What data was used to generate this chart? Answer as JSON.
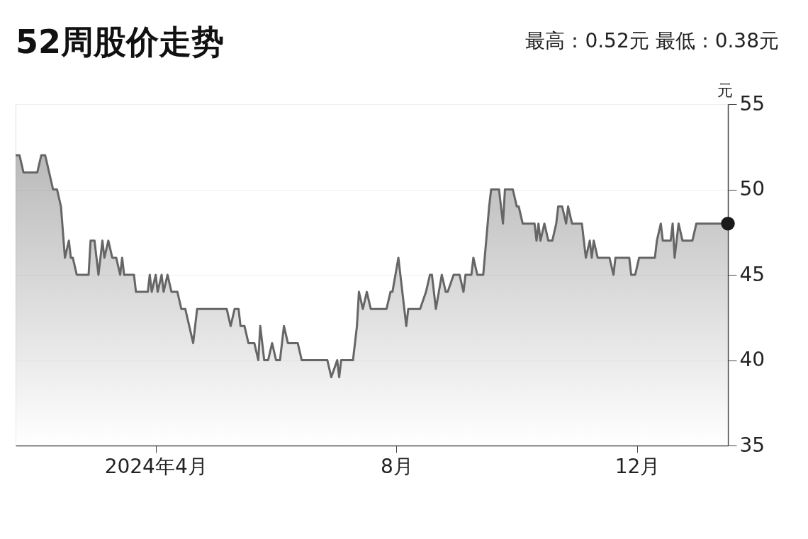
{
  "chart_data": {
    "type": "area",
    "title": "52周股价走势",
    "subtitle": "最高：0.52元    最低：0.38元",
    "ylabel": "元",
    "series": [
      {
        "color": "#666666",
        "x": [
          "2024-01-21",
          "2024-01-23",
          "2024-01-25",
          "2024-02-01",
          "2024-02-03",
          "2024-02-05",
          "2024-02-07",
          "2024-02-09",
          "2024-02-11",
          "2024-02-13",
          "2024-02-15",
          "2024-02-17",
          "2024-02-18",
          "2024-02-19",
          "2024-02-21",
          "2024-02-27",
          "2024-02-28",
          "2024-03-01",
          "2024-03-03",
          "2024-03-05",
          "2024-03-06",
          "2024-03-08",
          "2024-03-10",
          "2024-03-12",
          "2024-03-14",
          "2024-03-15",
          "2024-03-16",
          "2024-03-21",
          "2024-03-22",
          "2024-03-28",
          "2024-03-29",
          "2024-03-30",
          "2024-04-01",
          "2024-04-02",
          "2024-04-04",
          "2024-04-05",
          "2024-04-07",
          "2024-04-09",
          "2024-04-12",
          "2024-04-14",
          "2024-04-16",
          "2024-04-20",
          "2024-04-22",
          "2024-05-07",
          "2024-05-09",
          "2024-05-11",
          "2024-05-13",
          "2024-05-14",
          "2024-05-16",
          "2024-05-18",
          "2024-05-21",
          "2024-05-23",
          "2024-05-24",
          "2024-05-26",
          "2024-05-28",
          "2024-05-30",
          "2024-06-01",
          "2024-06-03",
          "2024-06-05",
          "2024-06-07",
          "2024-06-12",
          "2024-06-14",
          "2024-06-27",
          "2024-06-29",
          "2024-07-02",
          "2024-07-03",
          "2024-07-04",
          "2024-07-10",
          "2024-07-12",
          "2024-07-13",
          "2024-07-15",
          "2024-07-17",
          "2024-07-19",
          "2024-07-27",
          "2024-07-29",
          "2024-07-30",
          "2024-08-02",
          "2024-08-05",
          "2024-08-06",
          "2024-08-07",
          "2024-08-13",
          "2024-08-16",
          "2024-08-18",
          "2024-08-19",
          "2024-08-21",
          "2024-08-24",
          "2024-08-26",
          "2024-08-27",
          "2024-08-30",
          "2024-09-02",
          "2024-09-04",
          "2024-09-05",
          "2024-09-08",
          "2024-09-09",
          "2024-09-11",
          "2024-09-14",
          "2024-09-17",
          "2024-09-18",
          "2024-09-22",
          "2024-09-24",
          "2024-09-25",
          "2024-09-29",
          "2024-10-01",
          "2024-10-02",
          "2024-10-04",
          "2024-10-06",
          "2024-10-10",
          "2024-10-11",
          "2024-10-12",
          "2024-10-13",
          "2024-10-15",
          "2024-10-17",
          "2024-10-19",
          "2024-10-21",
          "2024-10-22",
          "2024-10-24",
          "2024-10-26",
          "2024-10-27",
          "2024-10-29",
          "2024-11-03",
          "2024-11-05",
          "2024-11-07",
          "2024-11-08",
          "2024-11-09",
          "2024-11-11",
          "2024-11-17",
          "2024-11-19",
          "2024-11-20",
          "2024-11-27",
          "2024-11-28",
          "2024-11-30",
          "2024-12-02",
          "2024-12-10",
          "2024-12-11",
          "2024-12-13",
          "2024-12-14",
          "2024-12-18",
          "2024-12-19",
          "2024-12-20",
          "2024-12-22",
          "2024-12-24",
          "2024-12-29",
          "2024-12-31",
          "2025-01-16"
        ],
        "values": [
          52,
          52,
          51,
          51,
          52,
          52,
          51,
          50,
          50,
          49,
          46,
          47,
          46,
          46,
          45,
          45,
          47,
          47,
          45,
          47,
          46,
          47,
          46,
          46,
          45,
          46,
          45,
          45,
          44,
          44,
          45,
          44,
          45,
          44,
          45,
          44,
          45,
          44,
          44,
          43,
          43,
          41,
          43,
          43,
          42,
          43,
          43,
          42,
          42,
          41,
          41,
          40,
          42,
          40,
          40,
          41,
          40,
          40,
          42,
          41,
          41,
          40,
          40,
          39,
          40,
          39,
          40,
          40,
          42,
          44,
          43,
          44,
          43,
          43,
          44,
          44,
          46,
          43,
          42,
          43,
          43,
          44,
          45,
          45,
          43,
          45,
          44,
          44,
          45,
          45,
          44,
          45,
          45,
          46,
          45,
          45,
          49,
          50,
          50,
          48,
          50,
          50,
          49,
          49,
          48,
          48,
          48,
          47,
          48,
          47,
          48,
          47,
          47,
          48,
          49,
          49,
          48,
          49,
          48,
          48,
          46,
          47,
          46,
          47,
          46,
          46,
          45,
          46,
          46,
          45,
          45,
          46,
          46,
          47,
          48,
          47,
          47,
          48,
          46,
          48,
          47,
          47,
          48,
          48
        ]
      },
      {
        "type": "scatter",
        "color": "#1a1a1a",
        "marker": "circle",
        "x": [
          "2025-01-16"
        ],
        "values": [
          48
        ]
      }
    ],
    "xlim": [
      "2024-01-21",
      "2025-01-16"
    ],
    "xticks": [
      {
        "value": "2024-04-01",
        "label": "2024年4月"
      },
      {
        "value": "2024-08-01",
        "label": "8月"
      },
      {
        "value": "2024-12-01",
        "label": "12月"
      }
    ],
    "ylim": [
      35,
      55
    ],
    "yticks": [
      35,
      40,
      45,
      50,
      55
    ],
    "grid": "y",
    "line_style": "solid"
  }
}
